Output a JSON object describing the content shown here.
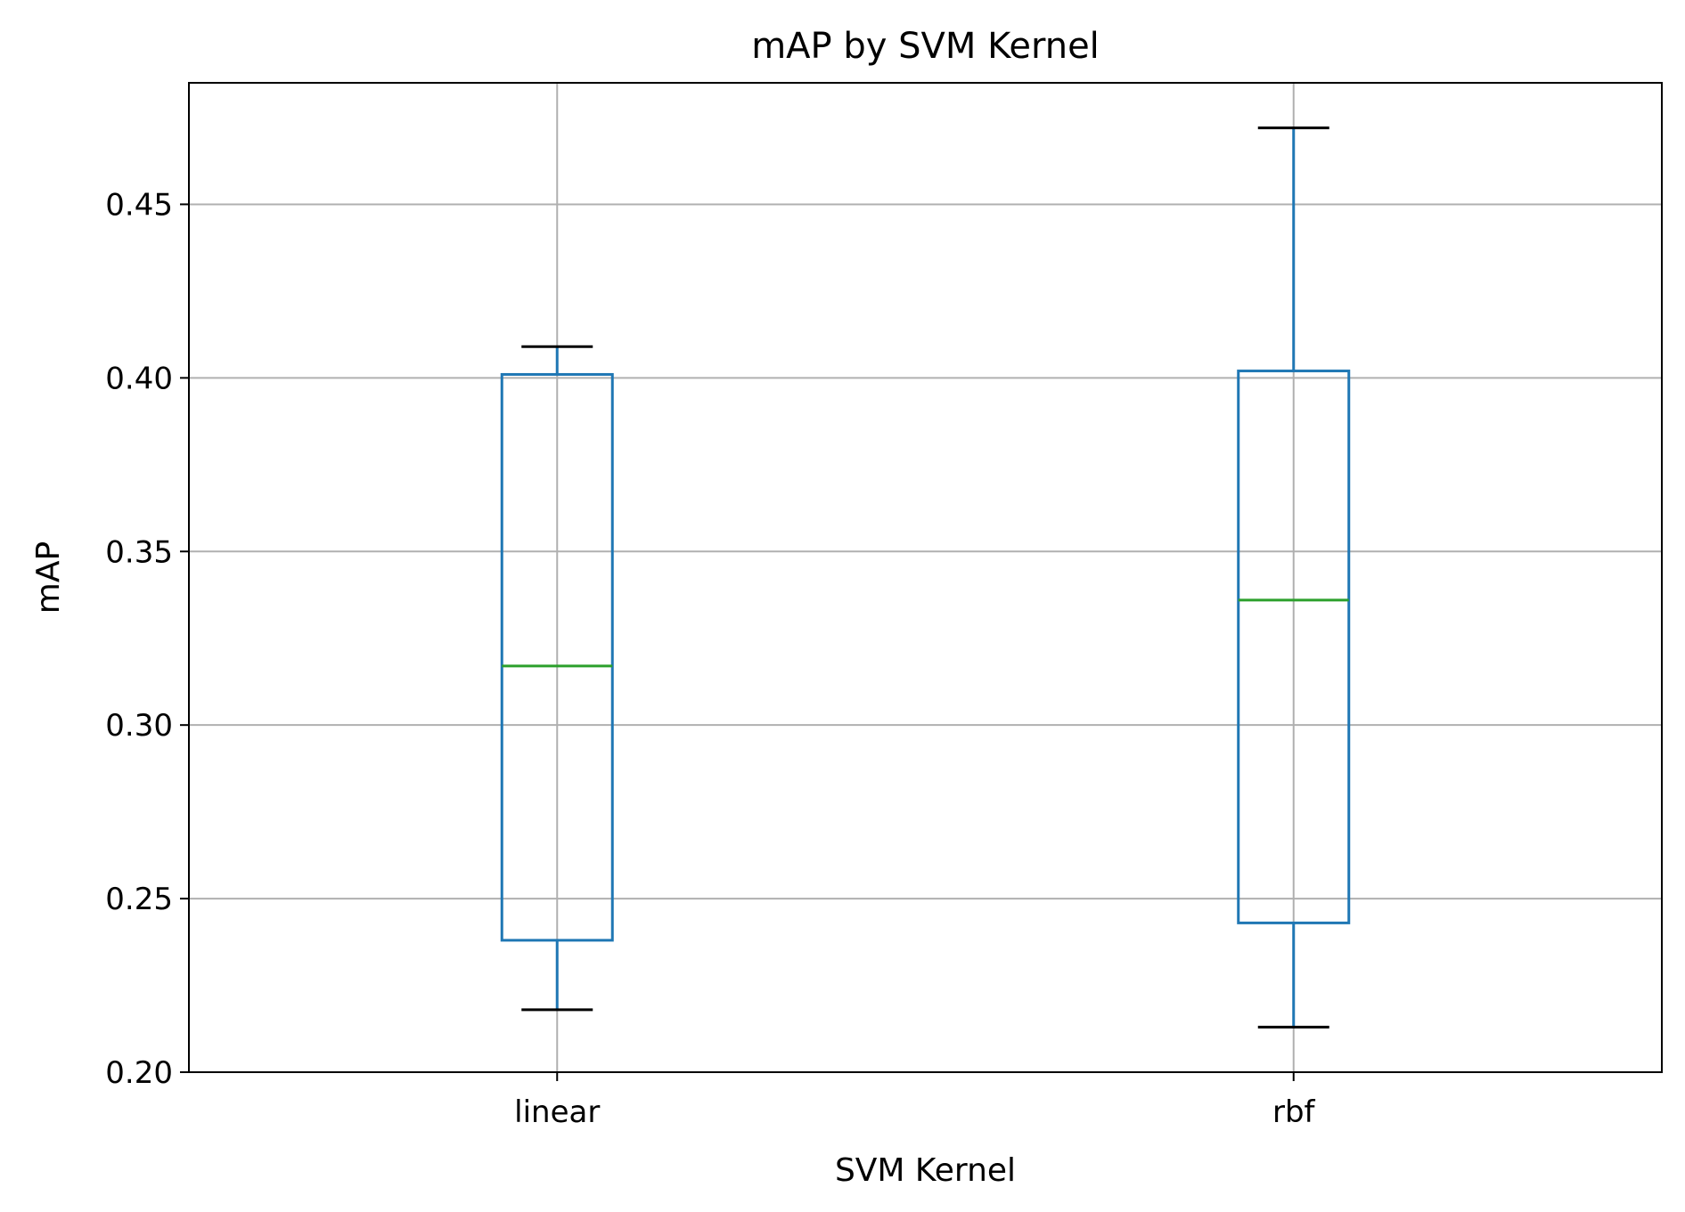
{
  "chart_data": {
    "type": "box",
    "title": "mAP by SVM Kernel",
    "xlabel": "SVM Kernel",
    "ylabel": "mAP",
    "ylim": [
      0.2,
      0.485
    ],
    "yticks": [
      "0.20",
      "0.25",
      "0.30",
      "0.35",
      "0.40",
      "0.45"
    ],
    "ytick_values": [
      0.2,
      0.25,
      0.3,
      0.35,
      0.4,
      0.45
    ],
    "categories": [
      "linear",
      "rbf"
    ],
    "grid": true,
    "boxes": [
      {
        "category": "linear",
        "whisker_low": 0.218,
        "q1": 0.238,
        "median": 0.317,
        "q3": 0.401,
        "whisker_high": 0.409
      },
      {
        "category": "rbf",
        "whisker_low": 0.213,
        "q1": 0.243,
        "median": 0.336,
        "q3": 0.402,
        "whisker_high": 0.472
      }
    ],
    "colors": {
      "box": "#1f77b4",
      "median": "#2ca02c",
      "cap": "#000000",
      "grid": "#b0b0b0",
      "axes": "#000000"
    }
  }
}
